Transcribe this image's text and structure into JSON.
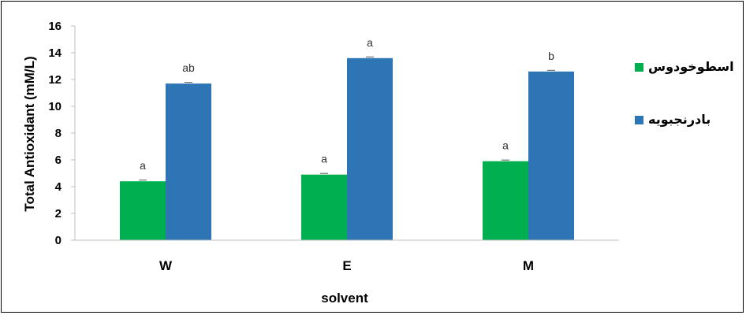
{
  "chart_data": {
    "type": "bar",
    "categories": [
      "W",
      "E",
      "M"
    ],
    "series": [
      {
        "name": "اسطوخودوس",
        "color": "#00b050",
        "values": [
          4.4,
          4.9,
          5.9
        ],
        "letters": [
          "a",
          "a",
          "a"
        ]
      },
      {
        "name": "بادرنجبویه",
        "color": "#2e75b6",
        "values": [
          11.7,
          13.6,
          12.6
        ],
        "letters": [
          "ab",
          "a",
          "b"
        ]
      }
    ],
    "xlabel": "solvent",
    "ylabel": "Total Antioxidant (mM/L)",
    "ylim": [
      0,
      16
    ],
    "yticks": [
      "0",
      "2",
      "4",
      "6",
      "8",
      "10",
      "12",
      "14",
      "16"
    ],
    "grid": false,
    "legend_position": "right"
  }
}
